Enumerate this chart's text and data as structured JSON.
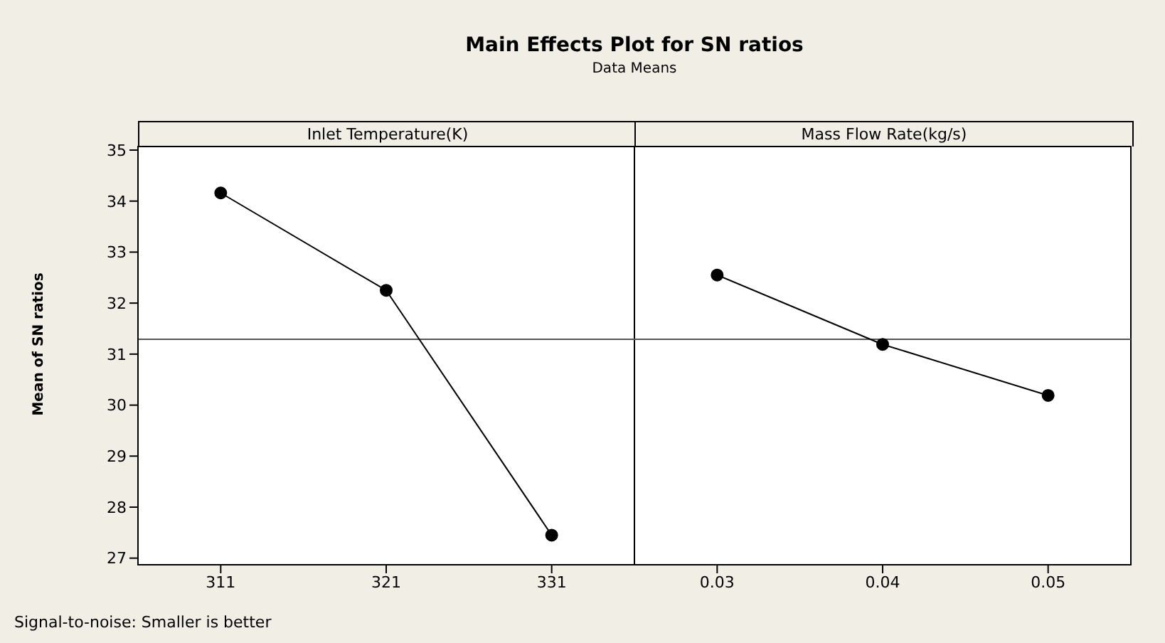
{
  "chart_data": [
    {
      "type": "line",
      "title": "Main Effects Plot for SN ratios",
      "subtitle": "Data Means",
      "xlabel": "Inlet Temperature(K)",
      "ylabel": "Mean of SN ratios",
      "categories": [
        "311",
        "321",
        "331"
      ],
      "series": [
        {
          "color": "#000000",
          "values": [
            34.16,
            32.25,
            27.45
          ]
        }
      ],
      "ylim": [
        26.87,
        35.07
      ],
      "yticks": [
        27,
        28,
        29,
        30,
        31,
        32,
        33,
        34,
        35
      ],
      "ref_lines": [
        {
          "axis": "y",
          "value": 31.29,
          "color": "#555555"
        }
      ],
      "marker": "circle",
      "annotations": [
        "Signal-to-noise: Smaller is better"
      ]
    },
    {
      "type": "line",
      "xlabel": "Mass Flow Rate(kg/s)",
      "categories": [
        "0.03",
        "0.04",
        "0.05"
      ],
      "series": [
        {
          "color": "#000000",
          "values": [
            32.55,
            31.19,
            30.19
          ]
        }
      ],
      "ylim": [
        26.87,
        35.07
      ],
      "yticks": [
        27,
        28,
        29,
        30,
        31,
        32,
        33,
        34,
        35
      ],
      "tick_labels": "x",
      "ref_lines": [
        {
          "axis": "y",
          "value": 31.29,
          "color": "#555555"
        }
      ],
      "marker": "circle"
    }
  ]
}
